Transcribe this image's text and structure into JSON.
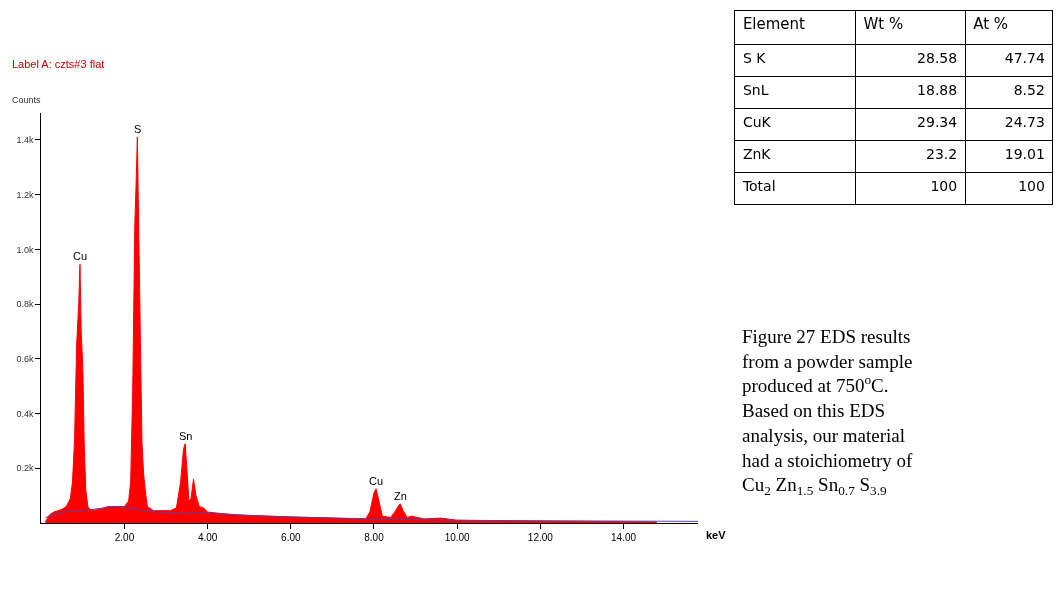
{
  "chart_data": [
    {
      "type": "area",
      "title": "Label A: czts#3 flat",
      "xlabel": "keV",
      "ylabel": "Counts",
      "xlim": [
        0,
        15.8
      ],
      "ylim": [
        0,
        1500
      ],
      "xticks": [
        {
          "value": 2,
          "label": "2.00"
        },
        {
          "value": 4,
          "label": "4.00"
        },
        {
          "value": 6,
          "label": "6.00"
        },
        {
          "value": 8,
          "label": "8.00"
        },
        {
          "value": 10,
          "label": "10.00"
        },
        {
          "value": 12,
          "label": "12.00"
        },
        {
          "value": 14,
          "label": "14.00"
        }
      ],
      "yticks": [
        {
          "value": 200,
          "label": "0.2k"
        },
        {
          "value": 400,
          "label": "0.4k"
        },
        {
          "value": 600,
          "label": "0.6k"
        },
        {
          "value": 800,
          "label": "0.8k"
        },
        {
          "value": 1000,
          "label": "1.0k"
        },
        {
          "value": 1200,
          "label": "1.2k"
        },
        {
          "value": 1400,
          "label": "1.4k"
        }
      ],
      "series": [
        {
          "type": "area",
          "color": "#ff0000",
          "x": [
            0.1,
            0.2,
            0.3,
            0.4,
            0.5,
            0.6,
            0.7,
            0.75,
            0.8,
            0.85,
            0.9,
            0.93,
            0.96,
            1.0,
            1.03,
            1.07,
            1.12,
            1.2,
            1.4,
            1.6,
            1.8,
            2.0,
            2.1,
            2.15,
            2.2,
            2.25,
            2.28,
            2.31,
            2.34,
            2.38,
            2.42,
            2.46,
            2.5,
            2.55,
            2.7,
            2.9,
            3.1,
            3.25,
            3.35,
            3.42,
            3.46,
            3.5,
            3.55,
            3.6,
            3.66,
            3.72,
            3.8,
            3.9,
            4.0,
            4.3,
            4.7,
            5.0,
            5.5,
            6.0,
            6.5,
            7.0,
            7.5,
            7.8,
            7.9,
            8.0,
            8.05,
            8.12,
            8.2,
            8.4,
            8.5,
            8.6,
            8.63,
            8.7,
            8.8,
            8.9,
            9.2,
            9.6,
            10.0,
            11.0,
            12.0,
            13.0,
            14.0,
            14.8
          ],
          "values": [
            5,
            30,
            40,
            45,
            50,
            60,
            90,
            150,
            300,
            650,
            800,
            945,
            700,
            560,
            300,
            120,
            60,
            45,
            50,
            60,
            60,
            60,
            80,
            150,
            500,
            1100,
            1240,
            1410,
            1100,
            700,
            300,
            180,
            120,
            60,
            45,
            45,
            45,
            55,
            150,
            270,
            290,
            200,
            80,
            90,
            160,
            100,
            60,
            55,
            40,
            35,
            30,
            28,
            25,
            22,
            20,
            18,
            15,
            15,
            40,
            110,
            125,
            80,
            25,
            20,
            40,
            65,
            70,
            45,
            20,
            25,
            15,
            18,
            10,
            8,
            7,
            6,
            5,
            4
          ]
        },
        {
          "type": "line",
          "color": "#5a3fa0",
          "x": [
            0.1,
            0.5,
            1.0,
            1.5,
            1.8,
            2.1,
            2.6,
            3.0,
            4.0,
            5.0,
            6.0,
            8.0,
            10.0,
            12.0,
            15.8
          ],
          "values": [
            20,
            40,
            45,
            55,
            60,
            55,
            42,
            38,
            35,
            27,
            22,
            15,
            10,
            8,
            6
          ]
        }
      ],
      "annotations": [
        {
          "text": "Cu",
          "x": 0.93,
          "y": 945
        },
        {
          "text": "S",
          "x": 2.31,
          "y": 1410
        },
        {
          "text": "Sn",
          "x": 3.46,
          "y": 290
        },
        {
          "text": "Cu",
          "x": 8.05,
          "y": 125
        },
        {
          "text": "Zn",
          "x": 8.63,
          "y": 70
        }
      ]
    },
    {
      "type": "other",
      "categories": [
        "Element",
        "Wt %",
        "At %"
      ],
      "annotations": [
        "S K",
        "28.58",
        "47.74",
        "SnL",
        "18.88",
        "8.52",
        "CuK",
        "29.34",
        "24.73",
        "ZnK",
        "23.2",
        "19.01",
        "Total",
        "100",
        "100",
        "Figure 27 EDS results from a powder sample produced at 750$^{o}$C. Based on this EDS analysis, our material had a stoichiometry of Cu$_{2}$ Zn$_{1.5}$ Sn$_{0.7}$ S$_{3.9}$"
      ]
    }
  ]
}
